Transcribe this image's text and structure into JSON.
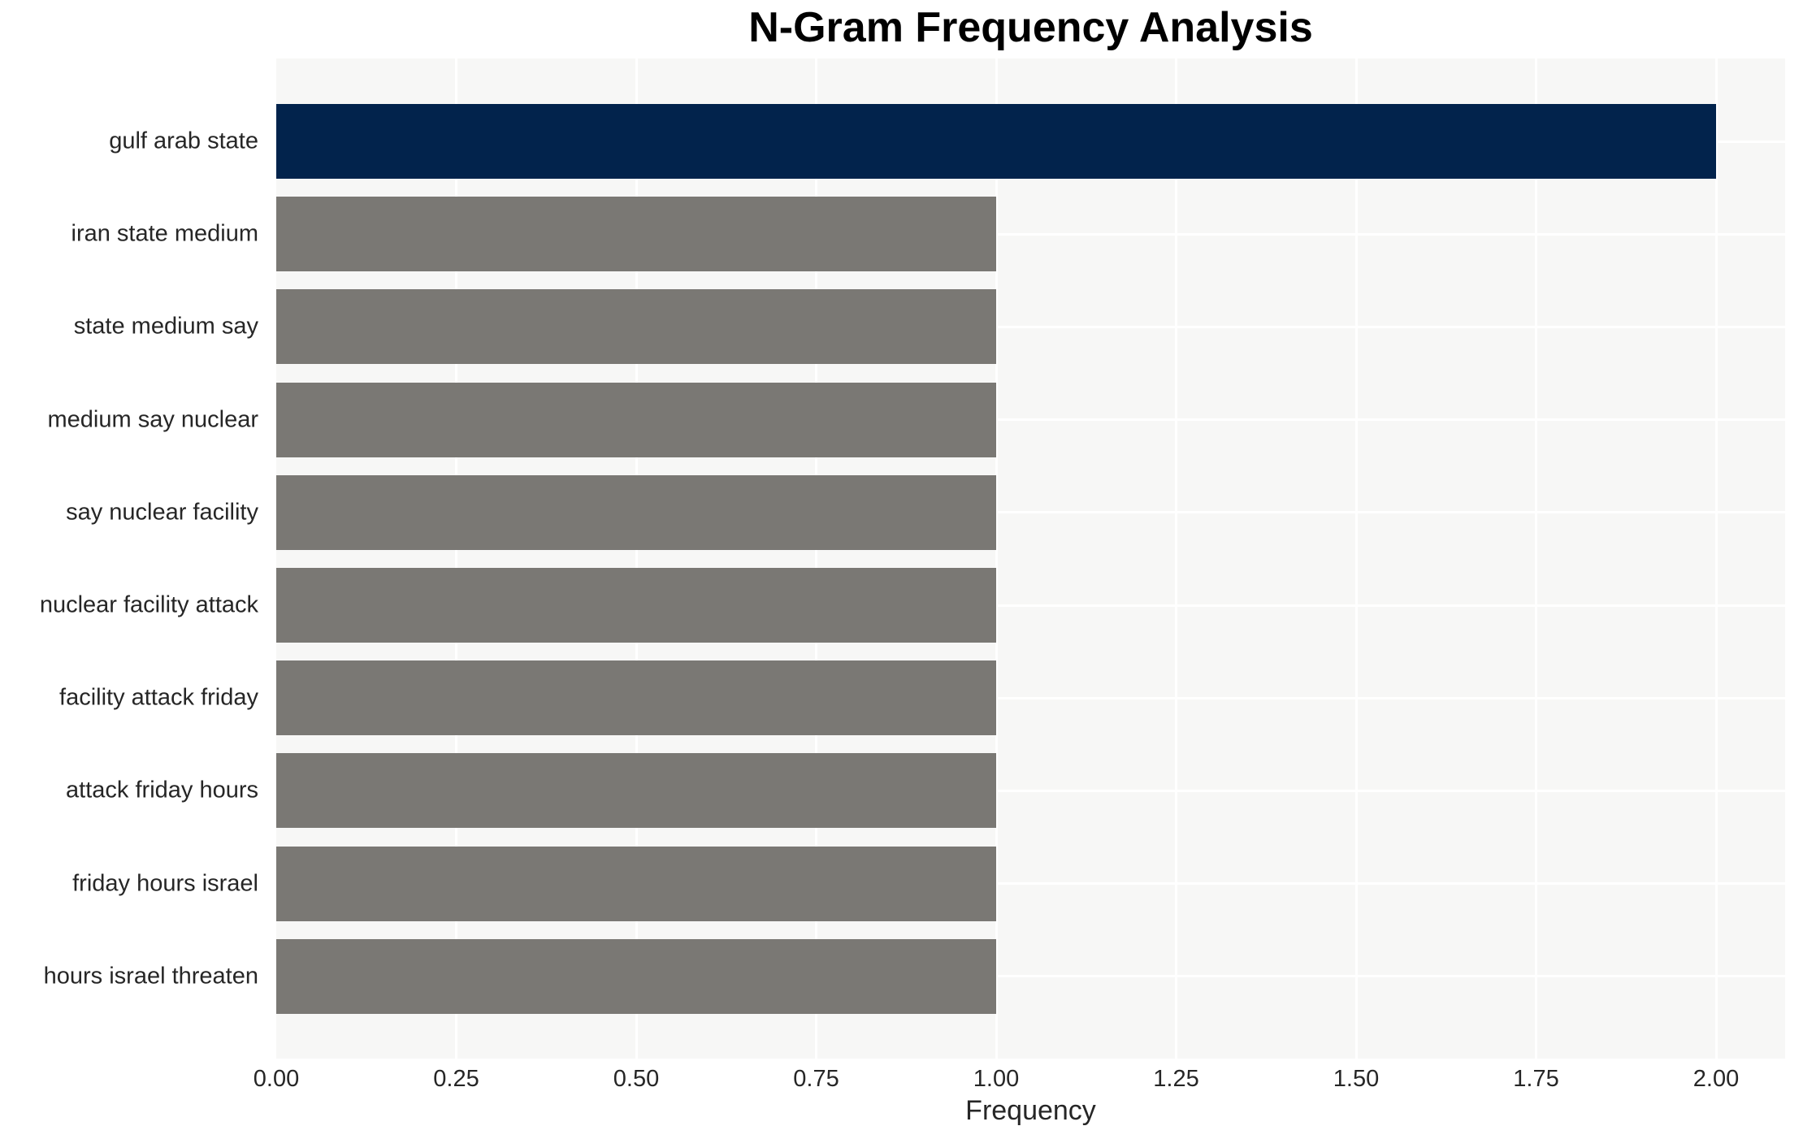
{
  "chart_data": {
    "type": "bar",
    "orientation": "horizontal",
    "title": "N-Gram Frequency Analysis",
    "xlabel": "Frequency",
    "ylabel": "",
    "categories": [
      "gulf arab state",
      "iran state medium",
      "state medium say",
      "medium say nuclear",
      "say nuclear facility",
      "nuclear facility attack",
      "facility attack friday",
      "attack friday hours",
      "friday hours israel",
      "hours israel threaten"
    ],
    "values": [
      2,
      1,
      1,
      1,
      1,
      1,
      1,
      1,
      1,
      1
    ],
    "xticks": [
      "0.00",
      "0.25",
      "0.50",
      "0.75",
      "1.00",
      "1.25",
      "1.50",
      "1.75",
      "2.00"
    ],
    "xtick_values": [
      0,
      0.25,
      0.5,
      0.75,
      1.0,
      1.25,
      1.5,
      1.75,
      2.0
    ],
    "xlim": [
      0,
      2.1
    ],
    "grid": true,
    "legend": false,
    "colors": {
      "highlight_bar": "#02234c",
      "default_bar": "#7a7874",
      "plot_background": "#f7f7f6",
      "gridline": "#ffffff",
      "tick_text": "#262626",
      "title_text": "#000000"
    },
    "highlight_index": 0
  }
}
